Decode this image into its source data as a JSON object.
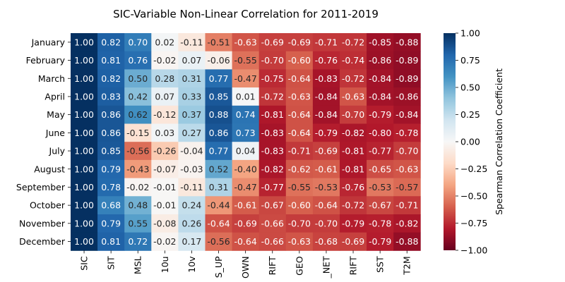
{
  "chart_data": {
    "type": "heatmap",
    "title": "SIC-Variable Non-Linear Correlation for 2011-2019",
    "xlabel": "",
    "ylabel": "",
    "rows": [
      "January",
      "February",
      "March",
      "April",
      "May",
      "June",
      "July",
      "August",
      "September",
      "October",
      "November",
      "December"
    ],
    "columns": [
      "SIC",
      "SIT",
      "MSL",
      "10u",
      "10v",
      "S_UP",
      "OWN",
      "RIFT",
      "GEO",
      "_NET",
      "RIFT",
      "SST",
      "T2M"
    ],
    "values": [
      [
        1.0,
        0.82,
        0.7,
        0.02,
        -0.11,
        -0.51,
        -0.63,
        -0.69,
        -0.69,
        -0.71,
        -0.72,
        -0.85,
        -0.88
      ],
      [
        1.0,
        0.81,
        0.76,
        -0.02,
        0.07,
        -0.06,
        -0.55,
        -0.7,
        -0.6,
        -0.76,
        -0.74,
        -0.86,
        -0.89
      ],
      [
        1.0,
        0.82,
        0.5,
        0.28,
        0.31,
        0.77,
        -0.47,
        -0.75,
        -0.64,
        -0.83,
        -0.72,
        -0.84,
        -0.89
      ],
      [
        1.0,
        0.83,
        0.42,
        0.07,
        0.33,
        0.85,
        0.01,
        -0.72,
        -0.63,
        -0.84,
        -0.63,
        -0.84,
        -0.86
      ],
      [
        1.0,
        0.86,
        0.62,
        -0.12,
        0.37,
        0.88,
        0.74,
        -0.81,
        -0.64,
        -0.84,
        -0.7,
        -0.79,
        -0.84
      ],
      [
        1.0,
        0.86,
        -0.15,
        0.03,
        0.27,
        0.86,
        0.73,
        -0.83,
        -0.64,
        -0.79,
        -0.82,
        -0.8,
        -0.78
      ],
      [
        1.0,
        0.85,
        -0.56,
        -0.26,
        -0.04,
        0.77,
        0.04,
        -0.83,
        -0.71,
        -0.69,
        -0.81,
        -0.77,
        -0.7
      ],
      [
        1.0,
        0.79,
        -0.43,
        -0.07,
        -0.03,
        0.52,
        -0.4,
        -0.82,
        -0.62,
        -0.61,
        -0.81,
        -0.65,
        -0.63
      ],
      [
        1.0,
        0.78,
        -0.02,
        -0.01,
        -0.11,
        0.31,
        -0.47,
        -0.77,
        -0.55,
        -0.53,
        -0.76,
        -0.53,
        -0.57
      ],
      [
        1.0,
        0.68,
        0.48,
        -0.01,
        0.24,
        -0.44,
        -0.61,
        -0.67,
        -0.6,
        -0.64,
        -0.72,
        -0.67,
        -0.71
      ],
      [
        1.0,
        0.79,
        0.55,
        -0.08,
        0.26,
        -0.64,
        -0.69,
        -0.66,
        -0.7,
        -0.7,
        -0.79,
        -0.78,
        -0.82
      ],
      [
        1.0,
        0.81,
        0.72,
        -0.02,
        0.17,
        -0.56,
        -0.64,
        -0.66,
        -0.63,
        -0.68,
        -0.69,
        -0.79,
        -0.88
      ]
    ],
    "vmin": -1.0,
    "vmax": 1.0,
    "colormap": "RdBu",
    "colorbar": {
      "label": "Spearman Correlation Coefficient",
      "ticks": [
        1.0,
        0.75,
        0.5,
        0.25,
        0.0,
        -0.25,
        -0.5,
        -0.75,
        -1.0
      ],
      "tick_labels": [
        "1.00",
        "0.75",
        "0.50",
        "0.25",
        "0.00",
        "−0.25",
        "−0.50",
        "−0.75",
        "−1.00"
      ]
    }
  }
}
